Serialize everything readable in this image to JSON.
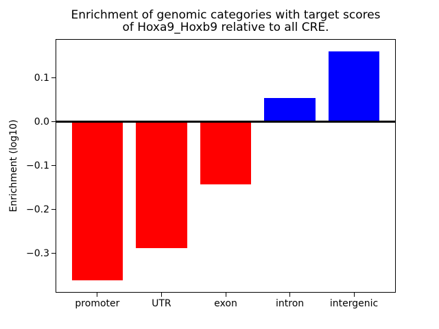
{
  "figure": {
    "title_line1": "Enrichment of genomic categories with target scores",
    "title_line2": "of Hoxa9_Hoxb9 relative to all CRE.",
    "ylabel": "Enrichment (log10)"
  },
  "chart_data": {
    "type": "bar",
    "title": "Enrichment of genomic categories with target scores\nof Hoxa9_Hoxb9 relative to all CRE.",
    "xlabel": "",
    "ylabel": "Enrichment (log10)",
    "categories": [
      "promoter",
      "UTR",
      "exon",
      "intron",
      "intergenic"
    ],
    "values": [
      -0.362,
      -0.288,
      -0.142,
      0.054,
      0.161
    ],
    "bar_colors": [
      "#ff0000",
      "#ff0000",
      "#ff0000",
      "#0000ff",
      "#0000ff"
    ],
    "color_rule": "negative bars red, positive bars blue",
    "ylim": [
      -0.388,
      0.187
    ],
    "yticks": [
      0.1,
      0.0,
      -0.1,
      -0.2,
      -0.3
    ],
    "ytick_labels": [
      "0.1",
      "0.0",
      "−0.1",
      "−0.2",
      "−0.3"
    ],
    "zero_line": true,
    "grid": false,
    "legend": false,
    "background": "#ffffff",
    "frame_color": "#000000"
  }
}
